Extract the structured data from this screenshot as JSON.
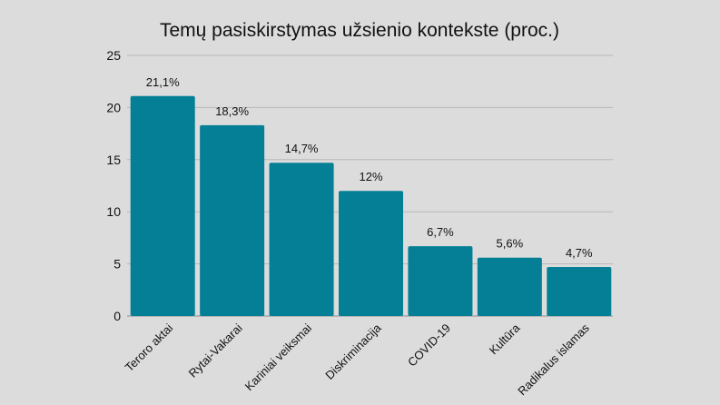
{
  "chart_data": {
    "type": "bar",
    "title": "Temų pasiskirstymas užsienio kontekste (proc.)",
    "categories": [
      "Teroro aktai",
      "Rytai-Vakarai",
      "Kariniai veiksmai",
      "Diskriminacija",
      "COVID-19",
      "Kultūra",
      "Radikalus islamas"
    ],
    "values": [
      21.1,
      18.3,
      14.7,
      12,
      6.7,
      5.6,
      4.7
    ],
    "data_labels": [
      "21,1%",
      "18,3%",
      "14,7%",
      "12%",
      "6,7%",
      "5,6%",
      "4,7%"
    ],
    "xlabel": "",
    "ylabel": "",
    "ylim": [
      0,
      25
    ],
    "yticks": [
      0,
      5,
      10,
      15,
      20,
      25
    ],
    "grid": true,
    "bar_color": "#047f96",
    "background_color": "#dcdcdc"
  }
}
